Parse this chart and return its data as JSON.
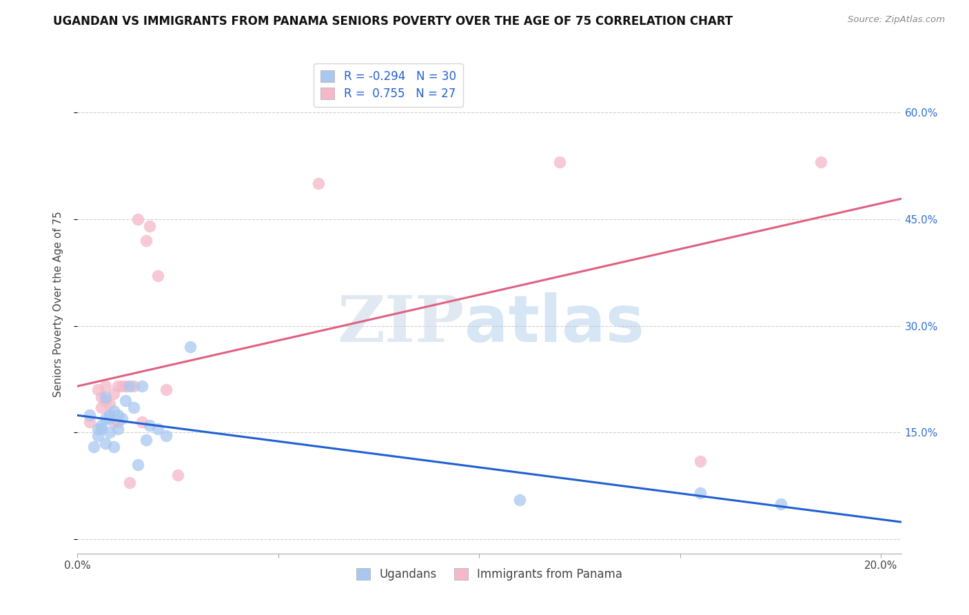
{
  "title": "UGANDAN VS IMMIGRANTS FROM PANAMA SENIORS POVERTY OVER THE AGE OF 75 CORRELATION CHART",
  "source": "Source: ZipAtlas.com",
  "ylabel": "Seniors Poverty Over the Age of 75",
  "xlim": [
    0.0,
    0.205
  ],
  "ylim": [
    -0.02,
    0.68
  ],
  "xticks": [
    0.0,
    0.05,
    0.1,
    0.15,
    0.2
  ],
  "xtick_labels": [
    "0.0%",
    "",
    "",
    "",
    "20.0%"
  ],
  "yticks": [
    0.0,
    0.15,
    0.3,
    0.45,
    0.6
  ],
  "right_ytick_labels": [
    "",
    "15.0%",
    "30.0%",
    "45.0%",
    "60.0%"
  ],
  "legend_r1": "R = -0.294",
  "legend_n1": "N = 30",
  "legend_r2": "R =  0.755",
  "legend_n2": "N = 27",
  "color_ugandan": "#a8c8f0",
  "color_panama": "#f5b8c8",
  "line_color_ugandan": "#2060d0",
  "line_color_panama": "#e06080",
  "watermark_zip": "ZIP",
  "watermark_atlas": "atlas",
  "ugandan_x": [
    0.003,
    0.004,
    0.005,
    0.005,
    0.006,
    0.006,
    0.007,
    0.007,
    0.007,
    0.008,
    0.008,
    0.008,
    0.009,
    0.009,
    0.01,
    0.01,
    0.011,
    0.012,
    0.013,
    0.014,
    0.015,
    0.016,
    0.017,
    0.018,
    0.02,
    0.022,
    0.028,
    0.11,
    0.155,
    0.175
  ],
  "ugandan_y": [
    0.175,
    0.13,
    0.145,
    0.155,
    0.155,
    0.16,
    0.135,
    0.17,
    0.2,
    0.15,
    0.17,
    0.175,
    0.13,
    0.18,
    0.155,
    0.175,
    0.17,
    0.195,
    0.215,
    0.185,
    0.105,
    0.215,
    0.14,
    0.16,
    0.155,
    0.145,
    0.27,
    0.055,
    0.065,
    0.05
  ],
  "panama_x": [
    0.003,
    0.005,
    0.006,
    0.006,
    0.007,
    0.007,
    0.008,
    0.008,
    0.009,
    0.009,
    0.01,
    0.01,
    0.011,
    0.012,
    0.013,
    0.014,
    0.015,
    0.016,
    0.017,
    0.018,
    0.02,
    0.022,
    0.025,
    0.06,
    0.12,
    0.155,
    0.185
  ],
  "panama_y": [
    0.165,
    0.21,
    0.185,
    0.2,
    0.195,
    0.215,
    0.175,
    0.19,
    0.205,
    0.165,
    0.215,
    0.165,
    0.215,
    0.215,
    0.08,
    0.215,
    0.45,
    0.165,
    0.42,
    0.44,
    0.37,
    0.21,
    0.09,
    0.5,
    0.53,
    0.11,
    0.53
  ],
  "background_color": "#ffffff",
  "grid_color": "#d0d0d0",
  "title_fontsize": 12,
  "axis_label_fontsize": 11,
  "tick_fontsize": 11,
  "legend_fontsize": 12,
  "scatter_size": 160
}
